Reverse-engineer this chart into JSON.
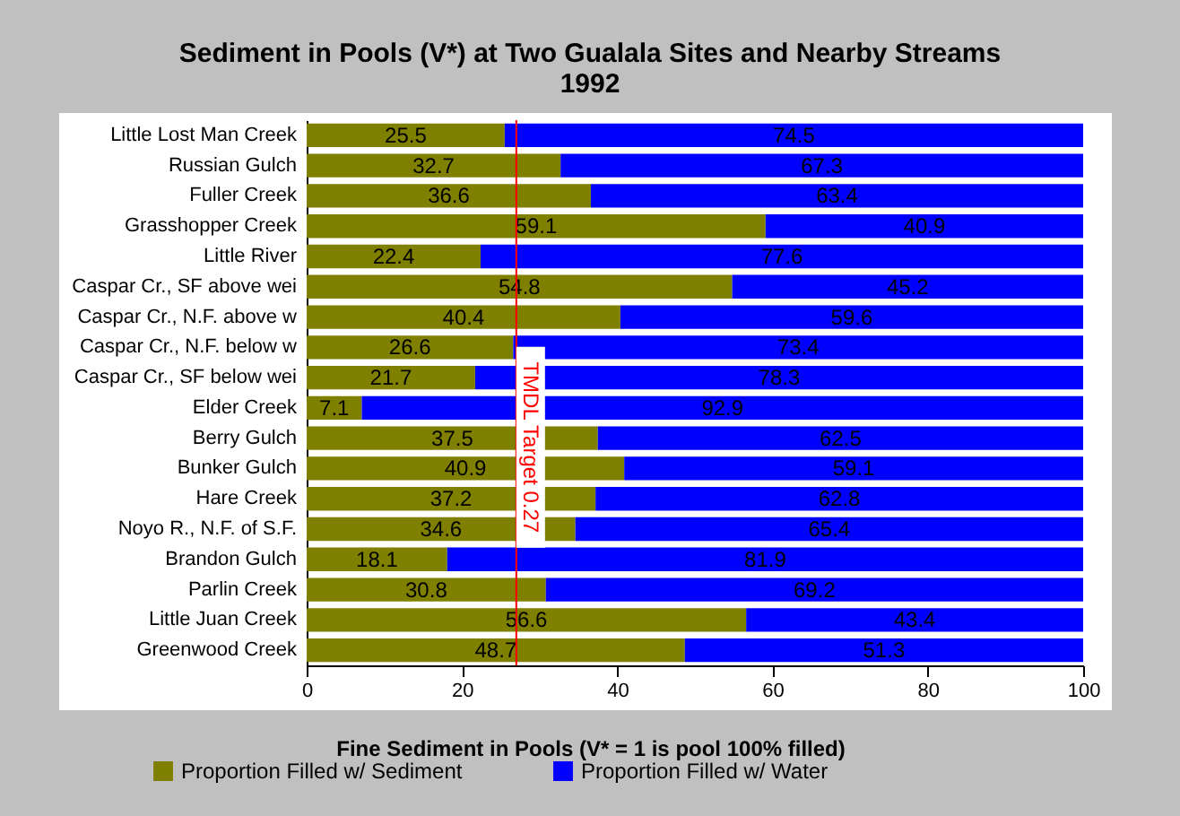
{
  "chart_data": {
    "type": "bar",
    "orientation": "horizontal",
    "stacked": true,
    "title": "Sediment in Pools (V*) at Two Gualala Sites and Nearby Streams",
    "subtitle": "1992",
    "xlabel": "Fine Sediment in Pools (V* = 1 is pool 100% filled)",
    "categories": [
      "Little Lost Man Creek",
      "Russian Gulch",
      "Fuller Creek",
      "Grasshopper Creek",
      "Little River",
      "Caspar Cr., SF above wei",
      "Caspar Cr., N.F. above w",
      "Caspar Cr., N.F. below w",
      "Caspar Cr., SF below wei",
      "Elder Creek",
      "Berry Gulch",
      "Bunker Gulch",
      "Hare Creek",
      "Noyo R., N.F. of  S.F.",
      "Brandon Gulch",
      "Parlin Creek",
      "Little Juan Creek",
      "Greenwood Creek"
    ],
    "series": [
      {
        "name": "Proportion Filled w/ Sediment",
        "color": "#808000",
        "values": [
          25.5,
          32.7,
          36.6,
          59.1,
          22.4,
          54.8,
          40.4,
          26.6,
          21.7,
          7.1,
          37.5,
          40.9,
          37.2,
          34.6,
          18.1,
          30.8,
          56.6,
          48.7
        ]
      },
      {
        "name": "Proportion Filled w/ Water",
        "color": "#0000ff",
        "values": [
          74.5,
          67.3,
          63.4,
          40.9,
          77.6,
          45.2,
          59.6,
          73.4,
          78.3,
          92.9,
          62.5,
          59.1,
          62.8,
          65.4,
          81.9,
          69.2,
          43.4,
          51.3
        ]
      }
    ],
    "xlim": [
      0,
      100
    ],
    "xticks": [
      0,
      20,
      40,
      60,
      80,
      100
    ],
    "data_labels": true,
    "legend": "bottom",
    "grid": false,
    "ref_lines": [
      {
        "axis": "x",
        "value": 27,
        "label": "TMDL Target 0.27",
        "color": "#ff0000"
      }
    ]
  }
}
